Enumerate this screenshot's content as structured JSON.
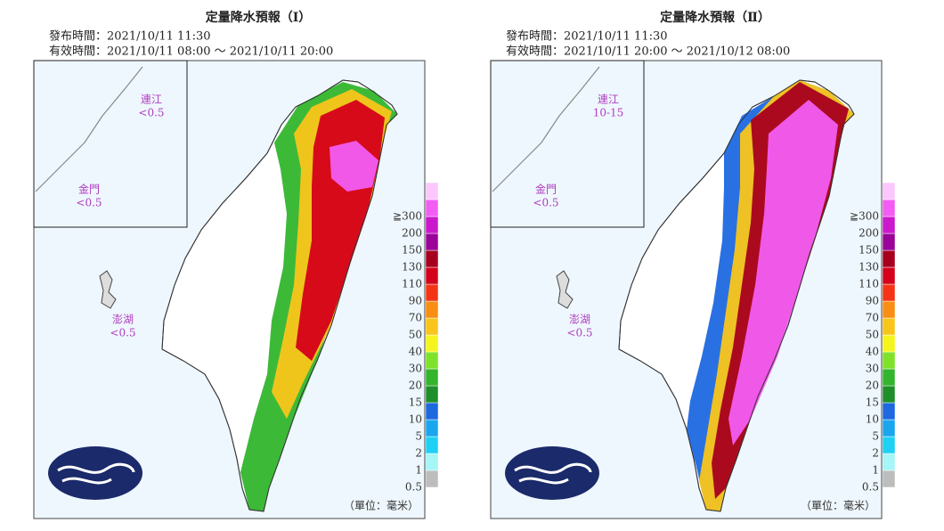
{
  "maps": [
    {
      "title": "定量降水預報（Ⅰ）",
      "issued": "發布時間：2021/10/11 11:30",
      "valid": "有效時間：2021/10/11 08:00 ～ 2021/10/11 20:00",
      "islands": [
        {
          "name": "連江",
          "value": "<0.5"
        },
        {
          "name": "金門",
          "value": "<0.5"
        },
        {
          "name": "澎湖",
          "value": "<0.5"
        }
      ],
      "unit": "（單位：毫米）"
    },
    {
      "title": "定量降水預報（Ⅱ）",
      "issued": "發布時間：2021/10/11 11:30",
      "valid": "有效時間：2021/10/11 20:00 ～ 2021/10/12 08:00",
      "islands": [
        {
          "name": "連江",
          "value": "10-15"
        },
        {
          "name": "金門",
          "value": "<0.5"
        },
        {
          "name": "澎湖",
          "value": "<0.5"
        }
      ],
      "unit": "（單位：毫米）"
    }
  ],
  "legend": {
    "labels": [
      "0.5",
      "1",
      "2",
      "5",
      "10",
      "15",
      "20",
      "30",
      "40",
      "50",
      "70",
      "90",
      "110",
      "130",
      "150",
      "200",
      "≧300"
    ],
    "colors": [
      "#bdbdbd",
      "#a6f5f7",
      "#1fd0f5",
      "#1aa6ee",
      "#1e68e0",
      "#1e8f2a",
      "#33b52d",
      "#7ee22a",
      "#f5f51e",
      "#f9c51a",
      "#f98e14",
      "#f53416",
      "#d5001a",
      "#a6001e",
      "#9a0499",
      "#cc18cc",
      "#f35df3",
      "#fcc7fc"
    ]
  }
}
